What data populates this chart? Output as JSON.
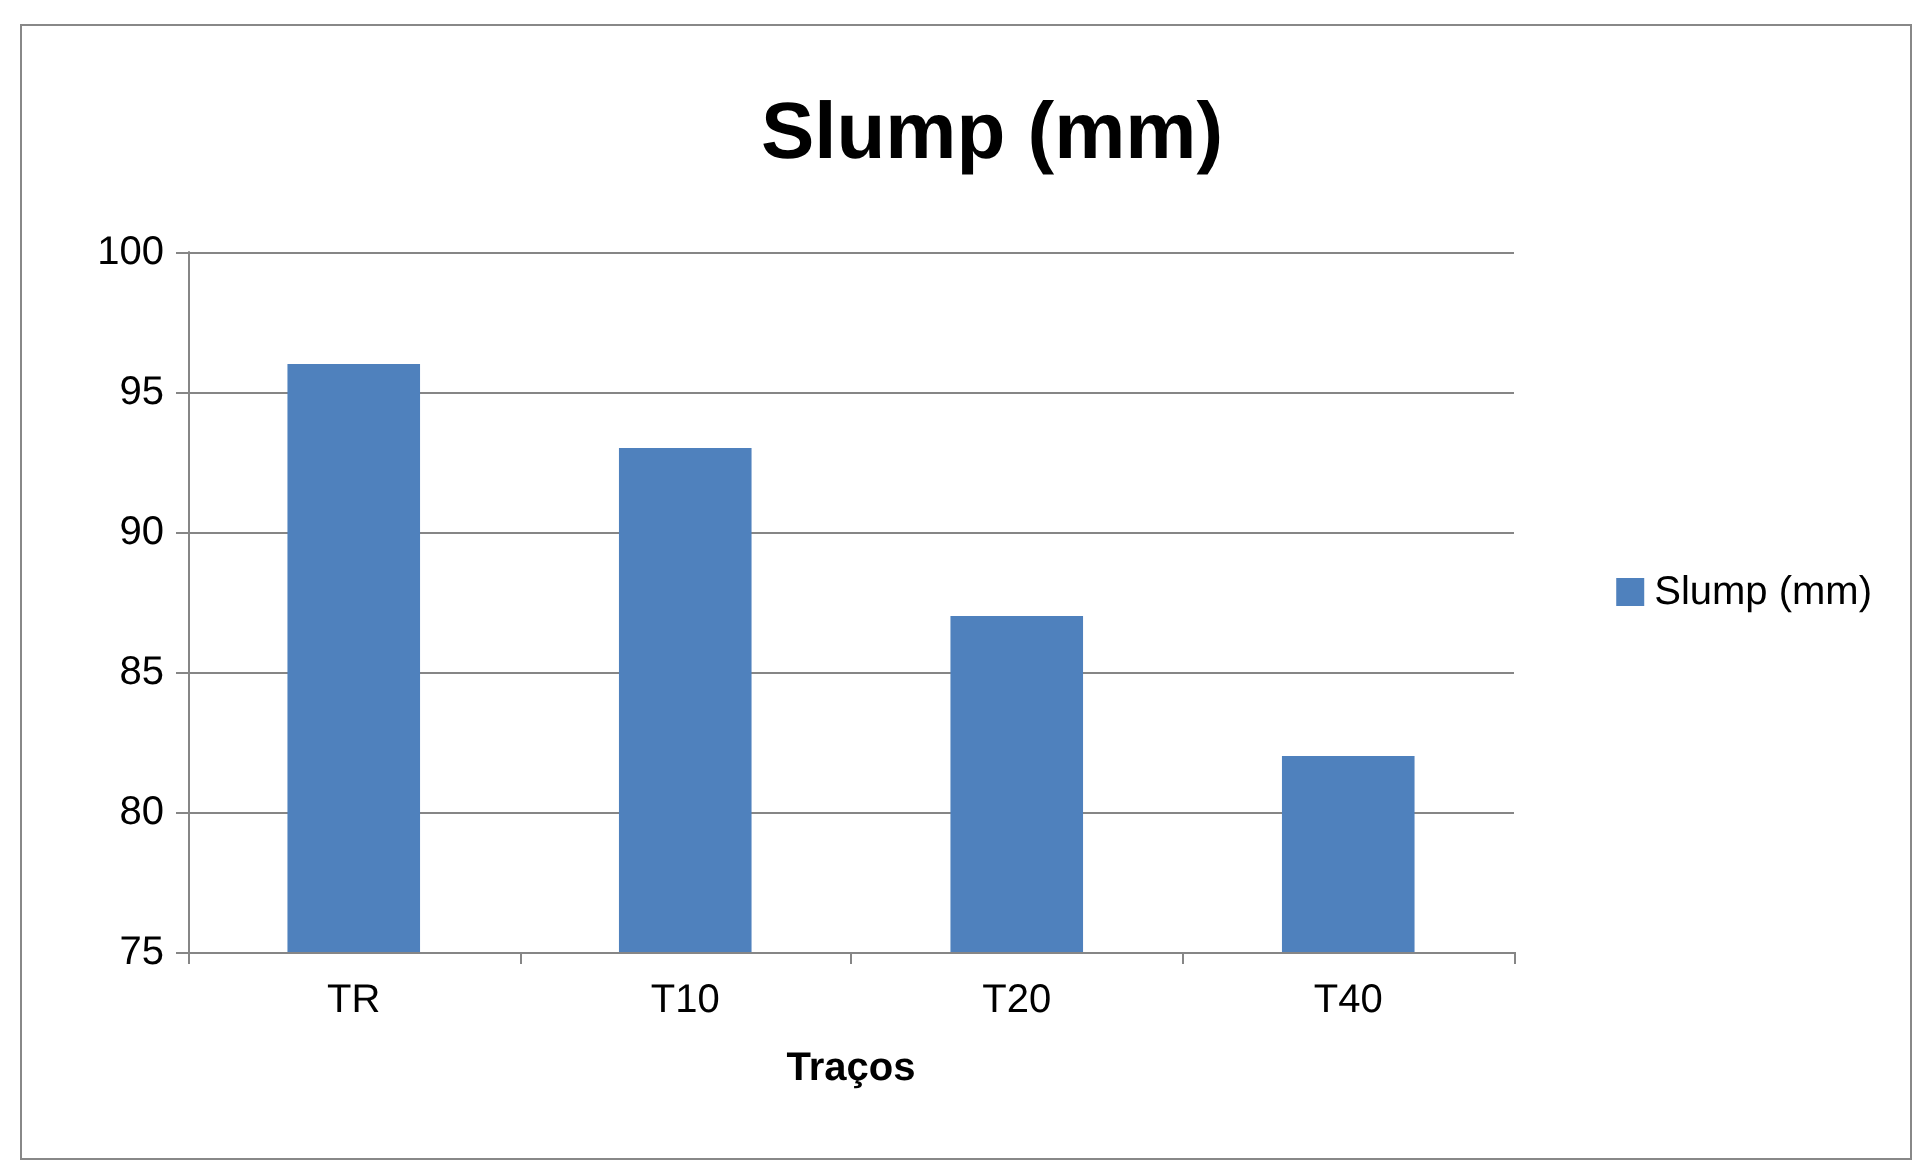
{
  "chart_data": {
    "type": "bar",
    "title": "Slump (mm)",
    "xlabel": "Traços",
    "categories": [
      "TR",
      "T10",
      "T20",
      "T40"
    ],
    "series": [
      {
        "name": "Slump (mm)",
        "color": "#4f81bd",
        "values": [
          96,
          93,
          87,
          82
        ]
      }
    ],
    "ylim": [
      75,
      100
    ],
    "yticks": [
      75,
      80,
      85,
      90,
      95,
      100
    ],
    "grid": "y",
    "legend": "right"
  }
}
